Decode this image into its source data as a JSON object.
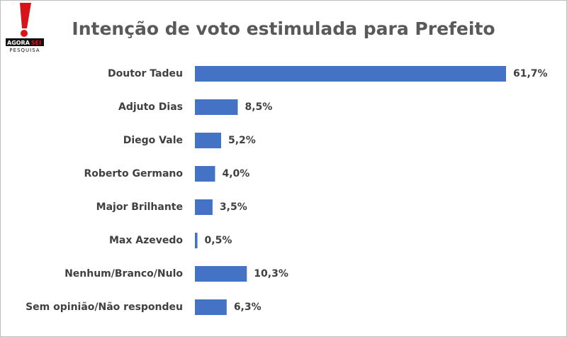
{
  "logo": {
    "word1": "AGORA",
    "word2": "SEI",
    "line2": "PESQUISA"
  },
  "chart_data": {
    "type": "bar",
    "orientation": "horizontal",
    "title": "Intenção de voto estimulada para Prefeito",
    "categories": [
      "Doutor Tadeu",
      "Adjuto Dias",
      "Diego Vale",
      "Roberto Germano",
      "Major Brilhante",
      "Max Azevedo",
      "Nenhum/Branco/Nulo",
      "Sem opinião/Não respondeu"
    ],
    "values": [
      61.7,
      8.5,
      5.2,
      4.0,
      3.5,
      0.5,
      10.3,
      6.3
    ],
    "value_labels": [
      "61,7%",
      "8,5%",
      "5,2%",
      "4,0%",
      "3,5%",
      "0,5%",
      "10,3%",
      "6,3%"
    ],
    "color": "#4472c4"
  }
}
